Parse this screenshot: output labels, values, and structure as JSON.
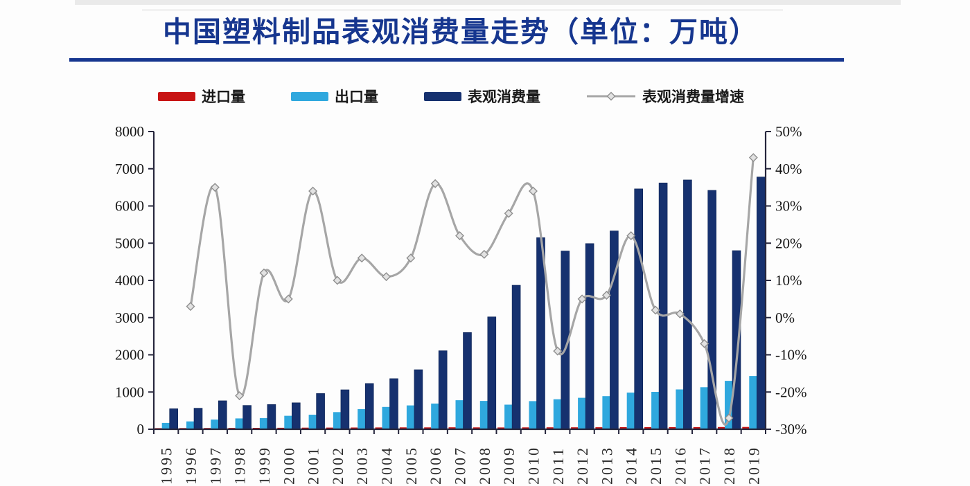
{
  "title": {
    "text": "中国塑料制品表观消费量走势（单位：万吨）"
  },
  "legend": [
    {
      "label": "进口量",
      "type": "bar",
      "color": "#c81414"
    },
    {
      "label": "出口量",
      "type": "bar",
      "color": "#2fa8de"
    },
    {
      "label": "表观消费量",
      "type": "bar",
      "color": "#16316f"
    },
    {
      "label": "表观消费量增速",
      "type": "line",
      "color": "#a6a6a6",
      "marker": "diamond"
    }
  ],
  "chart_data": {
    "type": "bar",
    "subtype": "grouped-bars-with-line",
    "title": "中国塑料制品表观消费量走势（单位：万吨）",
    "grid": "off",
    "legend_position": "top",
    "categories": [
      "1995",
      "1996",
      "1997",
      "1998",
      "1999",
      "2000",
      "2001",
      "2002",
      "2003",
      "2004",
      "2005",
      "2006",
      "2007",
      "2008",
      "2009",
      "2010",
      "2011",
      "2012",
      "2013",
      "2014",
      "2015",
      "2016",
      "2017",
      "2018",
      "2019"
    ],
    "series": [
      {
        "name": "进口量",
        "type": "bar",
        "axis": "left",
        "color": "#c81414",
        "values": [
          30,
          32,
          34,
          36,
          38,
          40,
          42,
          44,
          46,
          48,
          50,
          50,
          52,
          50,
          48,
          50,
          52,
          52,
          54,
          55,
          55,
          56,
          58,
          60,
          62
        ]
      },
      {
        "name": "出口量",
        "type": "bar",
        "axis": "left",
        "color": "#2fa8de",
        "values": [
          170,
          210,
          260,
          290,
          300,
          360,
          390,
          460,
          540,
          600,
          640,
          690,
          780,
          760,
          660,
          755,
          805,
          845,
          890,
          985,
          1005,
          1070,
          1130,
          1300,
          1430
        ]
      },
      {
        "name": "表观消费量",
        "type": "bar",
        "axis": "left",
        "color": "#16316f",
        "values": [
          550,
          565,
          765,
          640,
          665,
          710,
          960,
          1060,
          1230,
          1360,
          1600,
          2110,
          2600,
          3020,
          3870,
          5150,
          4790,
          4990,
          5330,
          6460,
          6620,
          6700,
          6420,
          4800,
          6780
        ]
      },
      {
        "name": "表观消费量增速",
        "type": "line",
        "axis": "right",
        "unit": "%",
        "color": "#a6a6a6",
        "values": [
          null,
          3,
          35,
          -21,
          12,
          5,
          34,
          10,
          16,
          11,
          16,
          36,
          22,
          17,
          28,
          34,
          -9,
          5,
          6,
          22,
          2,
          1,
          -7,
          -27,
          43
        ]
      }
    ],
    "left_axis": {
      "min": 0,
      "max": 8000,
      "step": 1000,
      "tick_values": [
        0,
        1000,
        2000,
        3000,
        4000,
        5000,
        6000,
        7000,
        8000
      ],
      "tick_labels": [
        "0",
        "1000",
        "2000",
        "3000",
        "4000",
        "5000",
        "6000",
        "7000",
        "8000"
      ]
    },
    "right_axis": {
      "min": -30,
      "max": 50,
      "step": 10,
      "tick_values": [
        -30,
        -20,
        -10,
        0,
        10,
        20,
        30,
        40,
        50
      ],
      "tick_labels": [
        "-30%",
        "-20%",
        "-10%",
        "0%",
        "10%",
        "20%",
        "30%",
        "40%",
        "50%"
      ]
    }
  }
}
